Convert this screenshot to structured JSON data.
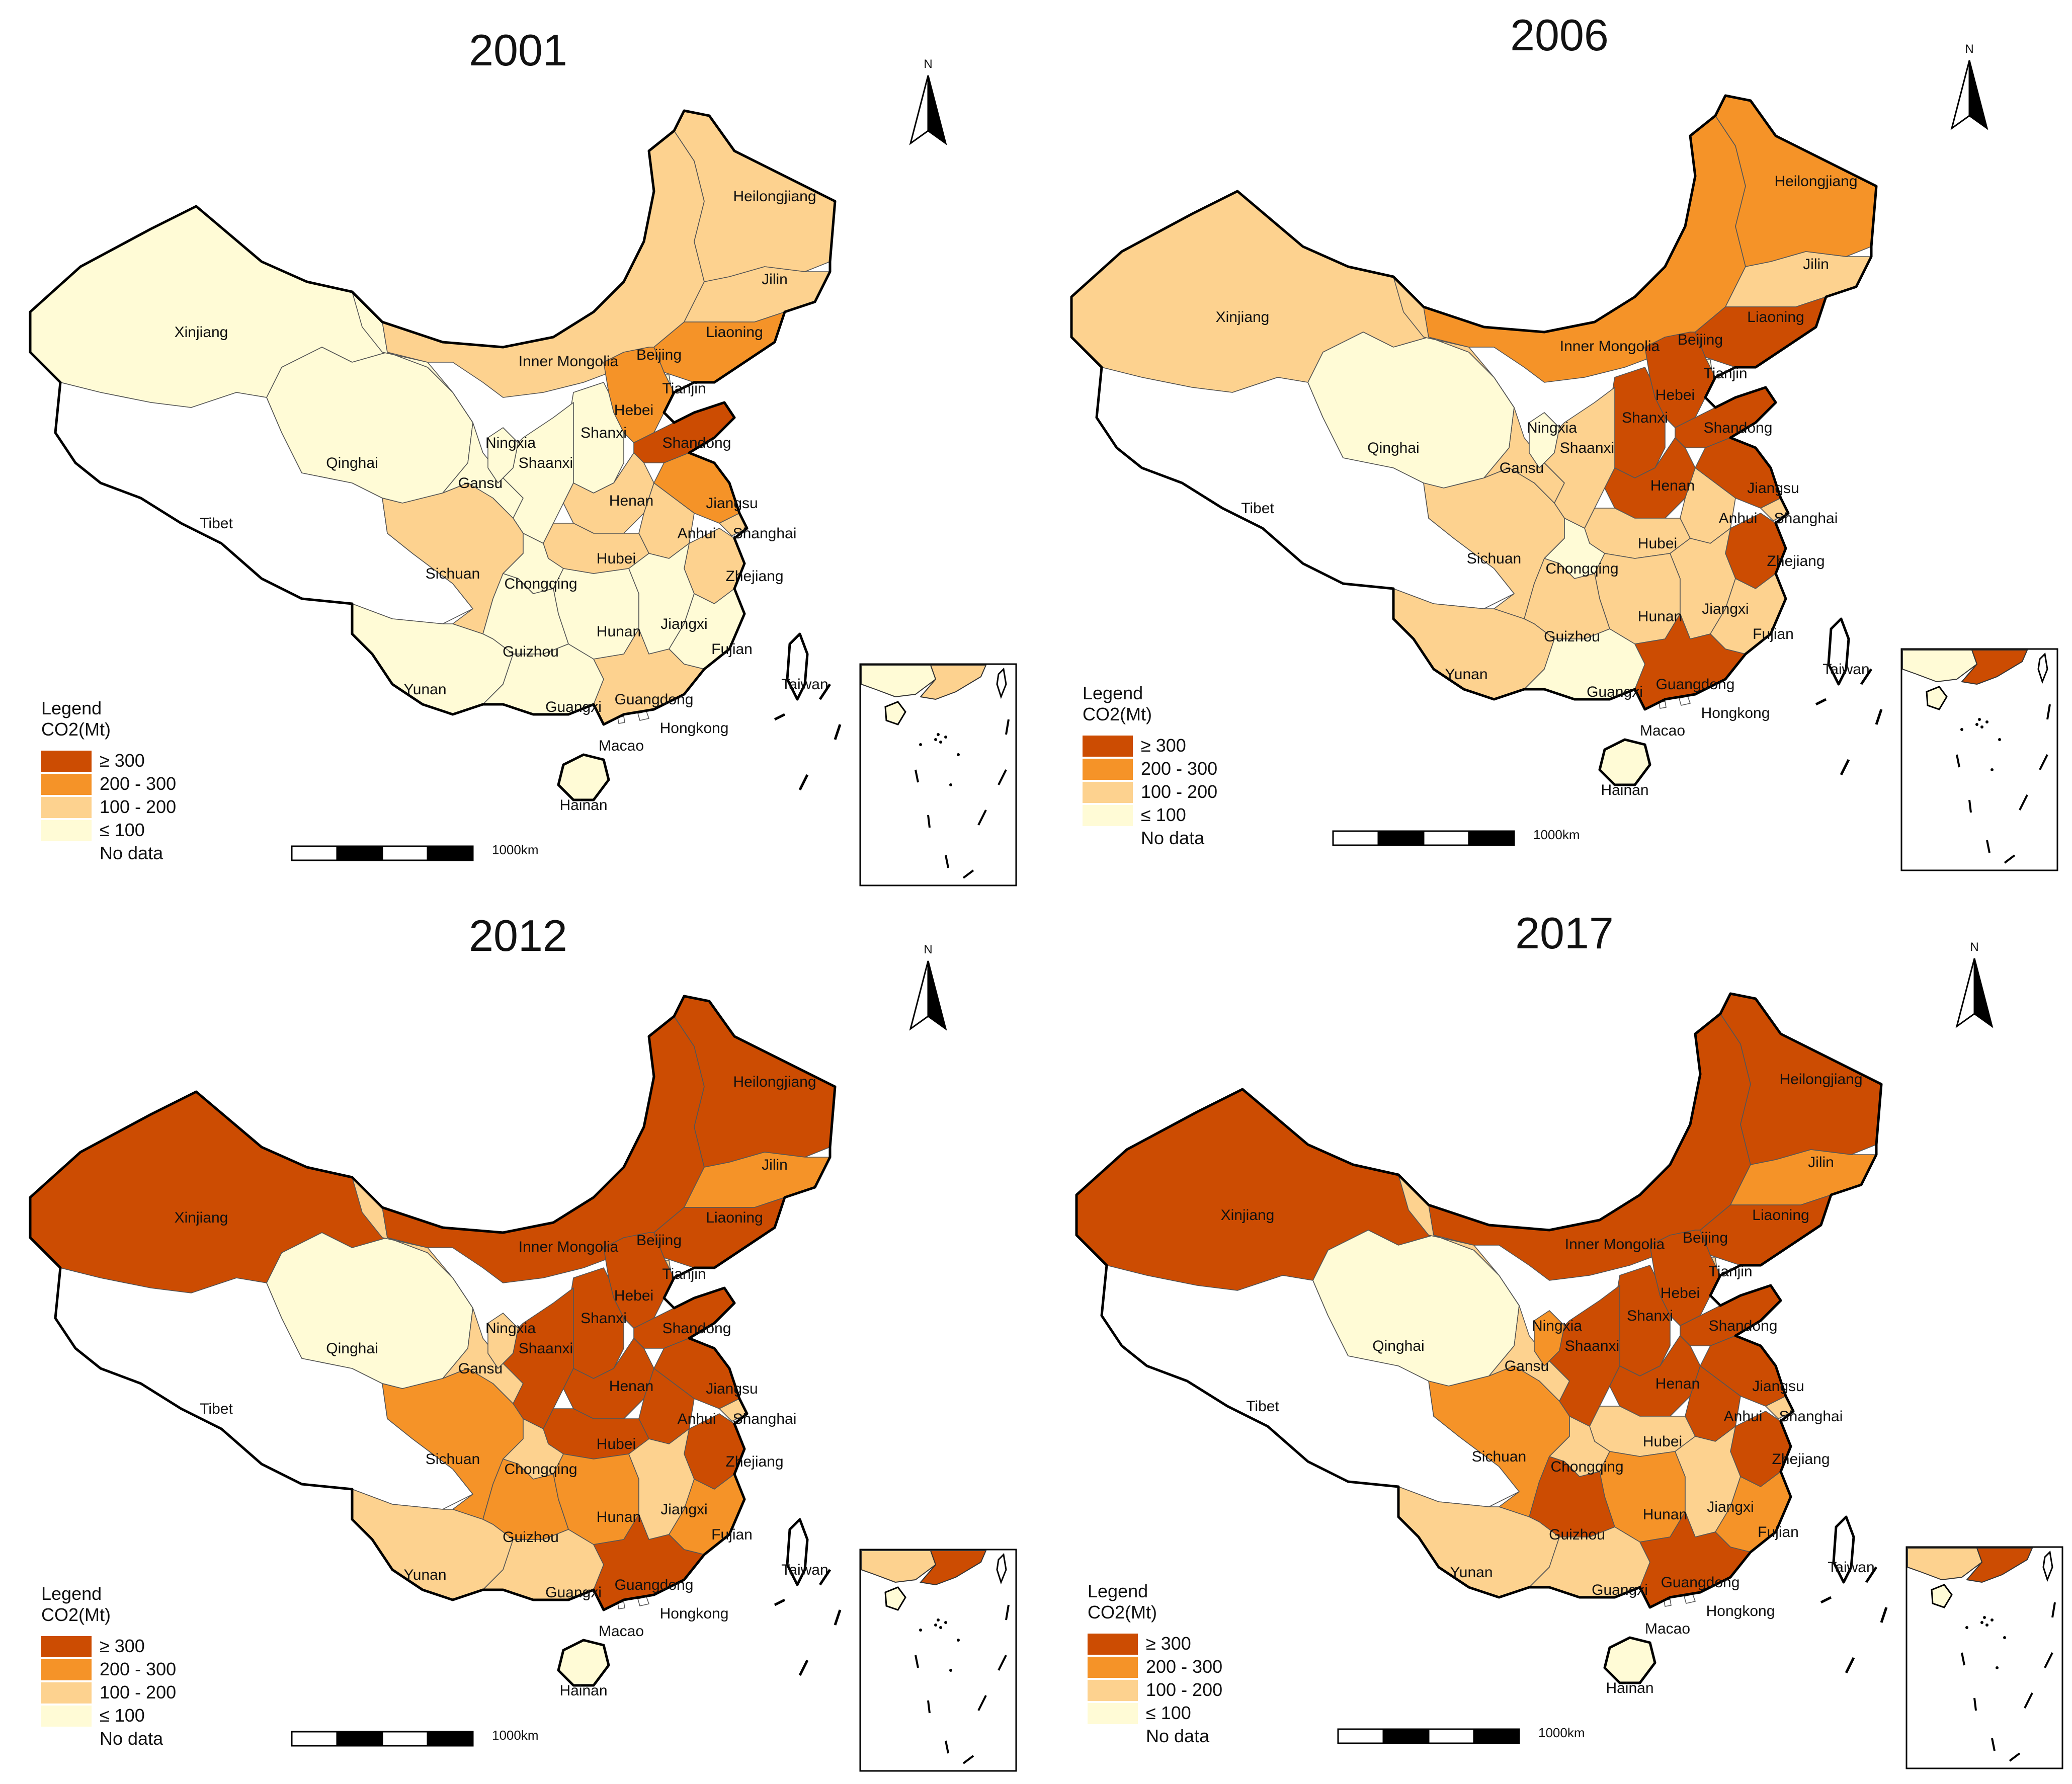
{
  "colors": {
    "ge300": "#CC4C02",
    "200-300": "#F59328",
    "100-200": "#FDD28F",
    "le100": "#FFFBD6",
    "nodata": "#FFFFFF"
  },
  "legend": {
    "title": "Legend",
    "subtitle": "CO2(Mt)",
    "items": [
      {
        "key": "ge300",
        "label": "≥ 300"
      },
      {
        "key": "200-300",
        "label": "200 - 300"
      },
      {
        "key": "100-200",
        "label": "100 - 200"
      },
      {
        "key": "le100",
        "label": "≤ 100"
      },
      {
        "key": "nodata",
        "label": "No data"
      }
    ]
  },
  "scale_label": "1000km",
  "north_label": "N",
  "regions": [
    {
      "id": "Xinjiang",
      "label": "Xinjiang"
    },
    {
      "id": "Tibet",
      "label": "Tibet"
    },
    {
      "id": "Qinghai",
      "label": "Qinghai"
    },
    {
      "id": "Gansu",
      "label": "Gansu"
    },
    {
      "id": "InnerMongolia",
      "label": "Inner Mongolia"
    },
    {
      "id": "Heilongjiang",
      "label": "Heilongjiang"
    },
    {
      "id": "Jilin",
      "label": "Jilin"
    },
    {
      "id": "Liaoning",
      "label": "Liaoning"
    },
    {
      "id": "Beijing",
      "label": "Beijing"
    },
    {
      "id": "Tianjin",
      "label": "Tianjin"
    },
    {
      "id": "Hebei",
      "label": "Hebei"
    },
    {
      "id": "Shanxi",
      "label": "Shanxi"
    },
    {
      "id": "Shandong",
      "label": "Shandong"
    },
    {
      "id": "Ningxia",
      "label": "Ningxia"
    },
    {
      "id": "Shaanxi",
      "label": "Shaanxi"
    },
    {
      "id": "Henan",
      "label": "Henan"
    },
    {
      "id": "Jiangsu",
      "label": "Jiangsu"
    },
    {
      "id": "Anhui",
      "label": "Anhui"
    },
    {
      "id": "Shanghai",
      "label": "Shanghai"
    },
    {
      "id": "Hubei",
      "label": "Hubei"
    },
    {
      "id": "Zhejiang",
      "label": "Zhejiang"
    },
    {
      "id": "Sichuan",
      "label": "Sichuan"
    },
    {
      "id": "Chongqing",
      "label": "Chongqing"
    },
    {
      "id": "Hunan",
      "label": "Hunan"
    },
    {
      "id": "Jiangxi",
      "label": "Jiangxi"
    },
    {
      "id": "Fujian",
      "label": "Fujian"
    },
    {
      "id": "Guizhou",
      "label": "Guizhou"
    },
    {
      "id": "Yunan",
      "label": "Yunan"
    },
    {
      "id": "Guangxi",
      "label": "Guangxi"
    },
    {
      "id": "Guangdong",
      "label": "Guangdong"
    },
    {
      "id": "Taiwan",
      "label": "Taiwan"
    },
    {
      "id": "Hongkong",
      "label": "Hongkong"
    },
    {
      "id": "Macao",
      "label": "Macao"
    },
    {
      "id": "Hainan",
      "label": "Hainan"
    }
  ],
  "panels": [
    {
      "title": "2001",
      "classes": {
        "Xinjiang": "le100",
        "Tibet": "nodata",
        "Qinghai": "le100",
        "Gansu": "le100",
        "InnerMongolia": "100-200",
        "Heilongjiang": "100-200",
        "Jilin": "100-200",
        "Liaoning": "200-300",
        "Beijing": "100-200",
        "Tianjin": "le100",
        "Hebei": "200-300",
        "Shanxi": "le100",
        "Shandong": "ge300",
        "Ningxia": "le100",
        "Shaanxi": "le100",
        "Henan": "100-200",
        "Jiangsu": "200-300",
        "Anhui": "100-200",
        "Shanghai": "100-200",
        "Hubei": "100-200",
        "Zhejiang": "100-200",
        "Sichuan": "100-200",
        "Chongqing": "le100",
        "Hunan": "le100",
        "Jiangxi": "le100",
        "Fujian": "le100",
        "Guizhou": "le100",
        "Yunan": "le100",
        "Guangxi": "le100",
        "Guangdong": "100-200",
        "Taiwan": "nodata",
        "Hongkong": "nodata",
        "Macao": "nodata",
        "Hainan": "le100"
      }
    },
    {
      "title": "2006",
      "classes": {
        "Xinjiang": "100-200",
        "Tibet": "nodata",
        "Qinghai": "le100",
        "Gansu": "100-200",
        "InnerMongolia": "200-300",
        "Heilongjiang": "200-300",
        "Jilin": "100-200",
        "Liaoning": "ge300",
        "Beijing": "100-200",
        "Tianjin": "le100",
        "Hebei": "ge300",
        "Shanxi": "ge300",
        "Shandong": "ge300",
        "Ningxia": "le100",
        "Shaanxi": "100-200",
        "Henan": "ge300",
        "Jiangsu": "ge300",
        "Anhui": "100-200",
        "Shanghai": "100-200",
        "Hubei": "100-200",
        "Zhejiang": "ge300",
        "Sichuan": "100-200",
        "Chongqing": "le100",
        "Hunan": "100-200",
        "Jiangxi": "100-200",
        "Fujian": "100-200",
        "Guizhou": "100-200",
        "Yunan": "100-200",
        "Guangxi": "le100",
        "Guangdong": "ge300",
        "Taiwan": "nodata",
        "Hongkong": "nodata",
        "Macao": "nodata",
        "Hainan": "le100"
      }
    },
    {
      "title": "2012",
      "classes": {
        "Xinjiang": "ge300",
        "Tibet": "nodata",
        "Qinghai": "le100",
        "Gansu": "100-200",
        "InnerMongolia": "ge300",
        "Heilongjiang": "ge300",
        "Jilin": "200-300",
        "Liaoning": "ge300",
        "Beijing": "le100",
        "Tianjin": "100-200",
        "Hebei": "ge300",
        "Shanxi": "ge300",
        "Shandong": "ge300",
        "Ningxia": "100-200",
        "Shaanxi": "ge300",
        "Henan": "ge300",
        "Jiangsu": "ge300",
        "Anhui": "ge300",
        "Shanghai": "100-200",
        "Hubei": "ge300",
        "Zhejiang": "ge300",
        "Sichuan": "200-300",
        "Chongqing": "100-200",
        "Hunan": "200-300",
        "Jiangxi": "100-200",
        "Fujian": "200-300",
        "Guizhou": "200-300",
        "Yunan": "100-200",
        "Guangxi": "100-200",
        "Guangdong": "ge300",
        "Taiwan": "nodata",
        "Hongkong": "nodata",
        "Macao": "nodata",
        "Hainan": "le100"
      }
    },
    {
      "title": "2017",
      "classes": {
        "Xinjiang": "ge300",
        "Tibet": "nodata",
        "Qinghai": "le100",
        "Gansu": "100-200",
        "InnerMongolia": "ge300",
        "Heilongjiang": "ge300",
        "Jilin": "200-300",
        "Liaoning": "ge300",
        "Beijing": "le100",
        "Tianjin": "100-200",
        "Hebei": "ge300",
        "Shanxi": "ge300",
        "Shandong": "ge300",
        "Ningxia": "200-300",
        "Shaanxi": "ge300",
        "Henan": "ge300",
        "Jiangsu": "ge300",
        "Anhui": "ge300",
        "Shanghai": "100-200",
        "Hubei": "100-200",
        "Zhejiang": "ge300",
        "Sichuan": "200-300",
        "Chongqing": "100-200",
        "Hunan": "200-300",
        "Jiangxi": "100-200",
        "Fujian": "200-300",
        "Guizhou": "ge300",
        "Yunan": "100-200",
        "Guangxi": "100-200",
        "Guangdong": "ge300",
        "Taiwan": "nodata",
        "Hongkong": "nodata",
        "Macao": "nodata",
        "Hainan": "le100"
      }
    }
  ]
}
